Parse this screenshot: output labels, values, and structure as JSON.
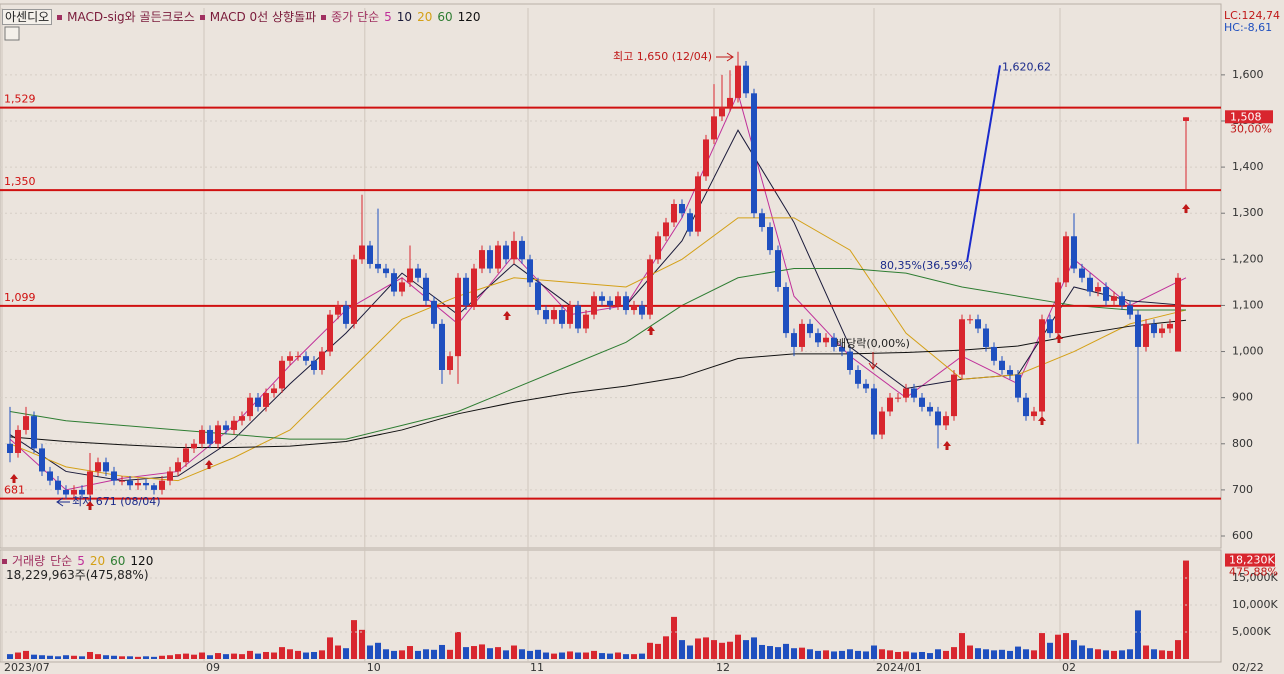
{
  "header": {
    "name": "아센디오",
    "indicators": [
      "MACD-sig와 골든크로스",
      "MACD 0선 상향돌파"
    ],
    "ma_label": "종가 단순",
    "lc": "LC:124,74",
    "hc": "HC:-8,61"
  },
  "chart_data": {
    "type": "candlestick",
    "ylim": [
      574,
      1745
    ],
    "yticks": [
      600,
      700,
      800,
      900,
      {
        "value": 1000,
        "label": "1,000"
      },
      {
        "value": 1100,
        "label": "1,100"
      },
      {
        "value": 1200,
        "label": "1,200"
      },
      {
        "value": 1300,
        "label": "1,300"
      },
      {
        "value": 1400,
        "label": "1,400"
      },
      {
        "value": 1500,
        "label": "1,500"
      },
      {
        "value": 1600,
        "label": "1,600"
      }
    ],
    "up_color": "#d8262e",
    "down_color": "#1f4fbf",
    "candles": [
      [
        800,
        880,
        760,
        780
      ],
      [
        780,
        840,
        770,
        830
      ],
      [
        830,
        880,
        820,
        860
      ],
      [
        860,
        870,
        780,
        790
      ],
      [
        790,
        800,
        730,
        740
      ],
      [
        740,
        750,
        710,
        720
      ],
      [
        720,
        730,
        690,
        700
      ],
      [
        700,
        710,
        680,
        690
      ],
      [
        690,
        710,
        680,
        700
      ],
      [
        700,
        710,
        680,
        690
      ],
      [
        690,
        780,
        680,
        740
      ],
      [
        740,
        770,
        730,
        760
      ],
      [
        760,
        770,
        730,
        740
      ],
      [
        740,
        750,
        710,
        720
      ],
      [
        720,
        730,
        710,
        720
      ],
      [
        720,
        730,
        700,
        710
      ],
      [
        710,
        725,
        700,
        715
      ],
      [
        715,
        725,
        700,
        710
      ],
      [
        710,
        715,
        690,
        700
      ],
      [
        700,
        730,
        690,
        720
      ],
      [
        720,
        750,
        710,
        740
      ],
      [
        740,
        770,
        730,
        760
      ],
      [
        760,
        800,
        750,
        790
      ],
      [
        790,
        810,
        780,
        800
      ],
      [
        800,
        840,
        790,
        830
      ],
      [
        830,
        840,
        790,
        800
      ],
      [
        800,
        850,
        790,
        840
      ],
      [
        840,
        850,
        820,
        830
      ],
      [
        830,
        860,
        820,
        850
      ],
      [
        850,
        870,
        840,
        860
      ],
      [
        860,
        910,
        850,
        900
      ],
      [
        900,
        910,
        870,
        880
      ],
      [
        880,
        920,
        870,
        910
      ],
      [
        910,
        930,
        900,
        920
      ],
      [
        920,
        990,
        910,
        980
      ],
      [
        980,
        1000,
        970,
        990
      ],
      [
        990,
        1000,
        980,
        990
      ],
      [
        990,
        1000,
        970,
        980
      ],
      [
        980,
        990,
        950,
        960
      ],
      [
        960,
        1010,
        950,
        1000
      ],
      [
        1000,
        1090,
        990,
        1080
      ],
      [
        1080,
        1110,
        1070,
        1100
      ],
      [
        1100,
        1110,
        1050,
        1060
      ],
      [
        1060,
        1210,
        1050,
        1200
      ],
      [
        1200,
        1340,
        1190,
        1230
      ],
      [
        1230,
        1240,
        1180,
        1190
      ],
      [
        1190,
        1310,
        1170,
        1180
      ],
      [
        1180,
        1190,
        1160,
        1170
      ],
      [
        1170,
        1180,
        1120,
        1130
      ],
      [
        1130,
        1160,
        1120,
        1150
      ],
      [
        1150,
        1230,
        1140,
        1180
      ],
      [
        1180,
        1190,
        1150,
        1160
      ],
      [
        1160,
        1170,
        1100,
        1110
      ],
      [
        1110,
        1120,
        1050,
        1060
      ],
      [
        1060,
        1070,
        930,
        960
      ],
      [
        960,
        1000,
        950,
        990
      ],
      [
        990,
        1170,
        930,
        1160
      ],
      [
        1160,
        1170,
        1090,
        1100
      ],
      [
        1100,
        1190,
        1090,
        1180
      ],
      [
        1180,
        1230,
        1170,
        1220
      ],
      [
        1220,
        1230,
        1170,
        1180
      ],
      [
        1180,
        1240,
        1170,
        1230
      ],
      [
        1230,
        1240,
        1190,
        1200
      ],
      [
        1200,
        1260,
        1190,
        1240
      ],
      [
        1240,
        1250,
        1190,
        1200
      ],
      [
        1200,
        1210,
        1140,
        1150
      ],
      [
        1150,
        1160,
        1080,
        1090
      ],
      [
        1090,
        1100,
        1060,
        1070
      ],
      [
        1070,
        1100,
        1060,
        1090
      ],
      [
        1090,
        1100,
        1050,
        1060
      ],
      [
        1060,
        1110,
        1050,
        1100
      ],
      [
        1100,
        1110,
        1040,
        1050
      ],
      [
        1050,
        1090,
        1040,
        1080
      ],
      [
        1080,
        1130,
        1070,
        1120
      ],
      [
        1120,
        1130,
        1100,
        1110
      ],
      [
        1110,
        1120,
        1090,
        1100
      ],
      [
        1100,
        1130,
        1090,
        1120
      ],
      [
        1120,
        1130,
        1080,
        1090
      ],
      [
        1090,
        1110,
        1080,
        1100
      ],
      [
        1100,
        1110,
        1070,
        1080
      ],
      [
        1080,
        1210,
        1070,
        1200
      ],
      [
        1200,
        1260,
        1190,
        1250
      ],
      [
        1250,
        1290,
        1240,
        1280
      ],
      [
        1280,
        1330,
        1270,
        1320
      ],
      [
        1320,
        1330,
        1290,
        1300
      ],
      [
        1300,
        1310,
        1250,
        1260
      ],
      [
        1260,
        1390,
        1250,
        1380
      ],
      [
        1380,
        1470,
        1370,
        1460
      ],
      [
        1460,
        1580,
        1450,
        1510
      ],
      [
        1510,
        1600,
        1500,
        1530
      ],
      [
        1530,
        1610,
        1520,
        1550
      ],
      [
        1550,
        1650,
        1540,
        1620
      ],
      [
        1620,
        1630,
        1550,
        1560
      ],
      [
        1560,
        1570,
        1290,
        1300
      ],
      [
        1300,
        1310,
        1260,
        1270
      ],
      [
        1270,
        1280,
        1210,
        1220
      ],
      [
        1220,
        1230,
        1130,
        1140
      ],
      [
        1140,
        1150,
        1030,
        1040
      ],
      [
        1040,
        1050,
        990,
        1010
      ],
      [
        1010,
        1070,
        1000,
        1060
      ],
      [
        1060,
        1070,
        1030,
        1040
      ],
      [
        1040,
        1050,
        1010,
        1020
      ],
      [
        1020,
        1040,
        1010,
        1030
      ],
      [
        1030,
        1040,
        1000,
        1010
      ],
      [
        1010,
        1020,
        990,
        1000
      ],
      [
        1000,
        1010,
        950,
        960
      ],
      [
        960,
        970,
        920,
        930
      ],
      [
        930,
        940,
        910,
        920
      ],
      [
        920,
        930,
        810,
        820
      ],
      [
        820,
        880,
        810,
        870
      ],
      [
        870,
        910,
        860,
        900
      ],
      [
        900,
        910,
        890,
        900
      ],
      [
        900,
        930,
        890,
        920
      ],
      [
        920,
        930,
        890,
        900
      ],
      [
        900,
        910,
        870,
        880
      ],
      [
        880,
        890,
        860,
        870
      ],
      [
        870,
        880,
        790,
        840
      ],
      [
        840,
        870,
        830,
        860
      ],
      [
        860,
        960,
        850,
        950
      ],
      [
        950,
        1080,
        940,
        1070
      ],
      [
        1070,
        1080,
        1060,
        1070
      ],
      [
        1070,
        1080,
        1040,
        1050
      ],
      [
        1050,
        1060,
        1000,
        1010
      ],
      [
        1010,
        1020,
        970,
        980
      ],
      [
        980,
        990,
        950,
        960
      ],
      [
        960,
        970,
        940,
        950
      ],
      [
        950,
        960,
        890,
        900
      ],
      [
        900,
        910,
        850,
        860
      ],
      [
        860,
        880,
        850,
        870
      ],
      [
        870,
        1080,
        860,
        1070
      ],
      [
        1070,
        1080,
        1030,
        1040
      ],
      [
        1040,
        1160,
        1030,
        1150
      ],
      [
        1150,
        1260,
        1140,
        1250
      ],
      [
        1250,
        1300,
        1170,
        1180
      ],
      [
        1180,
        1190,
        1150,
        1160
      ],
      [
        1160,
        1170,
        1120,
        1130
      ],
      [
        1130,
        1150,
        1120,
        1140
      ],
      [
        1140,
        1150,
        1100,
        1110
      ],
      [
        1110,
        1130,
        1100,
        1120
      ],
      [
        1120,
        1130,
        1090,
        1100
      ],
      [
        1100,
        1110,
        1070,
        1080
      ],
      [
        1080,
        1090,
        800,
        1010
      ],
      [
        1010,
        1070,
        1000,
        1060
      ],
      [
        1060,
        1070,
        1030,
        1040
      ],
      [
        1040,
        1060,
        1030,
        1050
      ],
      [
        1050,
        1070,
        1040,
        1060
      ],
      [
        1000,
        1170,
        1000,
        1160
      ],
      [
        1500,
        1508,
        1350,
        1508
      ]
    ],
    "ma": {
      "x": [
        0,
        7,
        14,
        21,
        28,
        35,
        42,
        49,
        56,
        63,
        70,
        77,
        84,
        91,
        98,
        105,
        112,
        119,
        126,
        133,
        140,
        147
      ],
      "series": [
        {
          "name": "5",
          "color": "#c0309a",
          "values": [
            810,
            700,
            725,
            740,
            840,
            970,
            1090,
            1160,
            1060,
            1210,
            1080,
            1100,
            1290,
            1560,
            1120,
            990,
            900,
            990,
            930,
            1200,
            1100,
            1160
          ]
        },
        {
          "name": "10",
          "color": "#1a1a3a",
          "values": [
            820,
            740,
            720,
            730,
            810,
            930,
            1040,
            1170,
            1080,
            1190,
            1100,
            1100,
            1240,
            1480,
            1280,
            1010,
            920,
            940,
            950,
            1140,
            1110,
            1100
          ]
        },
        {
          "name": "20",
          "color": "#d4a017",
          "values": [
            800,
            750,
            730,
            720,
            770,
            830,
            950,
            1070,
            1120,
            1160,
            1150,
            1140,
            1200,
            1290,
            1290,
            1220,
            1040,
            940,
            950,
            1000,
            1060,
            1090
          ]
        },
        {
          "name": "60",
          "color": "#2e7d32",
          "values": [
            870,
            850,
            840,
            830,
            820,
            810,
            810,
            840,
            870,
            920,
            970,
            1020,
            1100,
            1160,
            1180,
            1180,
            1170,
            1140,
            1120,
            1100,
            1090,
            1090
          ]
        },
        {
          "name": "120",
          "color": "#111111",
          "values": [
            815,
            805,
            798,
            792,
            792,
            795,
            805,
            830,
            865,
            890,
            910,
            925,
            945,
            985,
            995,
            995,
            998,
            1003,
            1012,
            1035,
            1055,
            1068
          ]
        }
      ]
    },
    "levels": [
      {
        "value": 1529,
        "label": "1,529"
      },
      {
        "value": 1350,
        "label": "1,350"
      },
      {
        "value": 1099,
        "label": "1,099"
      },
      681
    ],
    "level_color": "#d01010",
    "last_price": {
      "value": 1508,
      "label": "1,508"
    },
    "last_change": "30,00%",
    "annotations": {
      "high": "최고 1,650 (12/04)",
      "low": "최저 671 (08/04)",
      "trend_end": {
        "value": 1620.62,
        "label": "1,620,62"
      },
      "trend_start": "80,35%(36,59%)",
      "ex_dividend": "배당락(0,00%)"
    },
    "x_labels": [
      "2023/07",
      "09",
      "10",
      "11",
      "12",
      "2024/01",
      "02"
    ],
    "last_date": "02/22",
    "volume": {
      "title": "거래량",
      "ma_label": "단순",
      "ma_names": [
        "5",
        "20",
        "60",
        "120"
      ],
      "ma_colors": [
        "#c0309a",
        "#d4a017",
        "#2e7d32",
        "#111111"
      ],
      "total": "18,229,963주(475,88%)",
      "ylim": [
        0,
        20000
      ],
      "yticks": [
        {
          "value": 5000,
          "label": "5,000K"
        },
        {
          "value": 10000,
          "label": "10,000K"
        },
        {
          "value": 15000,
          "label": "15,000K"
        }
      ],
      "values": [
        900,
        1200,
        1500,
        800,
        700,
        600,
        500,
        700,
        600,
        500,
        1300,
        900,
        700,
        600,
        500,
        500,
        400,
        500,
        400,
        600,
        700,
        900,
        1000,
        800,
        1200,
        700,
        1100,
        900,
        1000,
        900,
        1500,
        1000,
        1300,
        1200,
        2200,
        1800,
        1500,
        1200,
        1300,
        1600,
        4000,
        2500,
        2000,
        7200,
        5400,
        2500,
        3000,
        1800,
        1500,
        1600,
        2400,
        1500,
        1800,
        1700,
        2600,
        1700,
        5000,
        2200,
        2400,
        2700,
        2000,
        2200,
        1600,
        2500,
        1800,
        1500,
        1700,
        1200,
        1000,
        1200,
        1400,
        1200,
        1200,
        1500,
        1100,
        1000,
        1200,
        900,
        900,
        1000,
        3000,
        2800,
        4200,
        7800,
        3500,
        2500,
        3800,
        4000,
        3500,
        3000,
        3200,
        4500,
        3500,
        4000,
        2600,
        2400,
        2200,
        2800,
        2000,
        2100,
        1800,
        1500,
        1600,
        1400,
        1500,
        1800,
        1500,
        1400,
        2500,
        1800,
        1600,
        1300,
        1400,
        1200,
        1300,
        1100,
        1800,
        1500,
        2200,
        4800,
        2500,
        2000,
        1800,
        1600,
        1700,
        1500,
        2300,
        1800,
        1600,
        4800,
        3000,
        4500,
        4800,
        3500,
        2500,
        2000,
        1800,
        1600,
        1500,
        1600,
        1800,
        9000,
        2500,
        1800,
        1600,
        1500,
        3500,
        18230
      ],
      "last": {
        "value": 18230,
        "label": "18,230K"
      },
      "last_change": "475,88%"
    }
  }
}
